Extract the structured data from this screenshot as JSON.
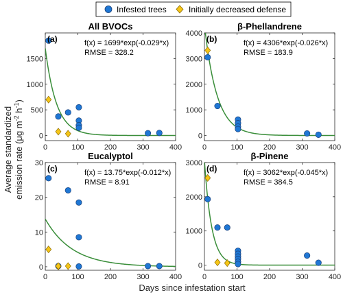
{
  "figure": {
    "xlabel": "Days since infestation start",
    "ylabel_line1": "Average standardized",
    "ylabel_line2_parts": [
      "emission rate (μg m",
      "-2",
      " h",
      "-1",
      ")"
    ],
    "legend": [
      {
        "name": "Infested trees",
        "marker": "circle",
        "color": "#1f77d4"
      },
      {
        "name": "Initially decreased defense",
        "marker": "diamond",
        "color": "#f5c518"
      }
    ],
    "colors": {
      "infested": "#1f77d4",
      "decreased": "#f5c518",
      "fit": "#3a8e3a"
    }
  },
  "chart_data": [
    {
      "type": "scatter",
      "panel_label": "(a)",
      "title": "All BVOCs",
      "fit_text": "f(x) = 1699*exp(-0.029*x)",
      "rmse_text": "RMSE = 328.2",
      "fit": {
        "a": 1699,
        "b": -0.029
      },
      "xlim": [
        0,
        400
      ],
      "ylim": [
        -100,
        2000
      ],
      "xticks": [
        0,
        100,
        200,
        300,
        400
      ],
      "yticks": [
        0,
        500,
        1000,
        1500
      ],
      "series": [
        {
          "name": "Infested trees",
          "x": [
            10,
            40,
            70,
            103,
            103,
            103,
            103,
            315,
            350
          ],
          "y": [
            1850,
            370,
            450,
            550,
            290,
            200,
            150,
            45,
            50
          ]
        },
        {
          "name": "Initially decreased defense",
          "x": [
            10,
            40,
            70
          ],
          "y": [
            700,
            75,
            35
          ]
        }
      ]
    },
    {
      "type": "scatter",
      "panel_label": "(b)",
      "title": "β-Phellandrene",
      "fit_text": "f(x) = 4306*exp(-0.026*x)",
      "rmse_text": "RMSE = 183.9",
      "fit": {
        "a": 4306,
        "b": -0.026
      },
      "xlim": [
        0,
        400
      ],
      "ylim": [
        -200,
        4000
      ],
      "xticks": [
        0,
        100,
        200,
        300,
        400
      ],
      "yticks": [
        0,
        1000,
        2000,
        3000,
        4000
      ],
      "series": [
        {
          "name": "Infested trees",
          "x": [
            10,
            40,
            103,
            103,
            103,
            103,
            315,
            350
          ],
          "y": [
            3050,
            1150,
            620,
            480,
            350,
            250,
            80,
            30
          ]
        },
        {
          "name": "Initially decreased defense",
          "x": [
            10
          ],
          "y": [
            3320
          ]
        }
      ]
    },
    {
      "type": "scatter",
      "panel_label": "(c)",
      "title": "Eucalyptol",
      "fit_text": "f(x) = 13.75*exp(-0.012*x)",
      "rmse_text": "RMSE = 8.91",
      "fit": {
        "a": 13.75,
        "b": -0.012
      },
      "xlim": [
        0,
        400
      ],
      "ylim": [
        -1,
        30
      ],
      "xticks": [
        0,
        100,
        200,
        300,
        400
      ],
      "yticks": [
        0,
        10,
        20,
        30
      ],
      "series": [
        {
          "name": "Infested trees",
          "x": [
            10,
            40,
            70,
            103,
            103,
            103,
            315,
            350
          ],
          "y": [
            25.5,
            0.2,
            22,
            18.5,
            8.5,
            0.1,
            0.2,
            0.2
          ]
        },
        {
          "name": "Initially decreased defense",
          "x": [
            10,
            40,
            40,
            70
          ],
          "y": [
            5,
            0.1,
            0.2,
            0.2
          ]
        }
      ]
    },
    {
      "type": "scatter",
      "panel_label": "(d)",
      "title": "β-Pinene",
      "fit_text": "f(x) = 3062*exp(-0.045*x)",
      "rmse_text": "RMSE = 384.5",
      "fit": {
        "a": 3062,
        "b": -0.045
      },
      "xlim": [
        0,
        400
      ],
      "ylim": [
        -150,
        3000
      ],
      "xticks": [
        0,
        100,
        200,
        300,
        400
      ],
      "yticks": [
        0,
        1000,
        2000,
        3000
      ],
      "series": [
        {
          "name": "Infested trees",
          "x": [
            10,
            40,
            70,
            103,
            103,
            103,
            103,
            103,
            103,
            315,
            350
          ],
          "y": [
            1930,
            1100,
            1100,
            420,
            330,
            250,
            180,
            100,
            30,
            280,
            70
          ]
        },
        {
          "name": "Initially decreased defense",
          "x": [
            10,
            40,
            70
          ],
          "y": [
            2550,
            80,
            60
          ]
        }
      ]
    }
  ]
}
